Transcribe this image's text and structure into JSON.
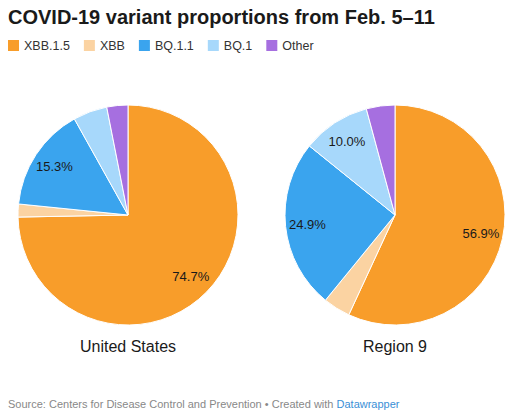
{
  "chart_data": {
    "type": "pie",
    "title": "COVID-19 variant proportions from Feb. 5–11",
    "categories": [
      "XBB.1.5",
      "XBB",
      "BQ.1.1",
      "BQ.1",
      "Other"
    ],
    "colors": [
      "#f89d2a",
      "#fbd3a2",
      "#3aa4ee",
      "#a7d8fb",
      "#a66fe0"
    ],
    "legend": "top",
    "data_labels": true,
    "series": [
      {
        "name": "United States",
        "values": [
          74.7,
          1.9,
          15.3,
          5.0,
          3.1
        ],
        "value_labels": [
          "74.7%",
          null,
          "15.3%",
          null,
          null
        ]
      },
      {
        "name": "Region 9",
        "values": [
          56.9,
          4.0,
          24.9,
          10.0,
          4.2
        ],
        "value_labels": [
          "56.9%",
          null,
          "24.9%",
          "10.0%",
          null
        ]
      }
    ],
    "source": "Source: Centers for Disease Control and Prevention • Created with ",
    "source_link": "Datawrapper"
  }
}
